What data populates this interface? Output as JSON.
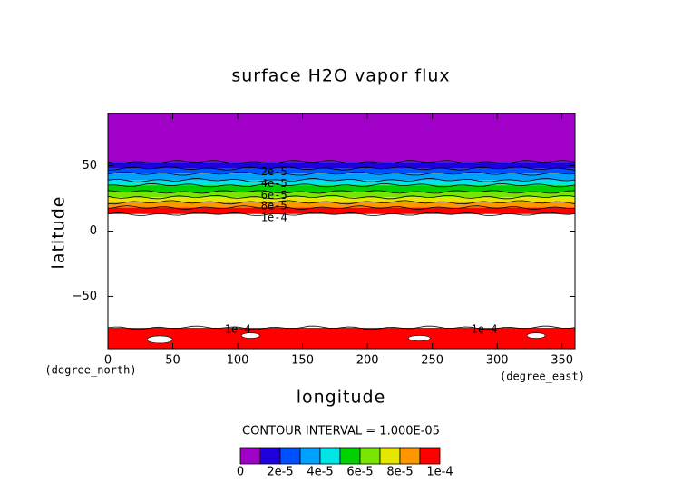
{
  "chart_data": {
    "type": "contour",
    "title": "surface H2O vapor flux",
    "x_label": "longitude",
    "y_label": "latitude",
    "x_unit": "(degree_east)",
    "y_unit": "(degree_north)",
    "xlim": [
      0,
      360
    ],
    "ylim": [
      -90,
      90
    ],
    "xticks": [
      0,
      50,
      100,
      150,
      200,
      250,
      300,
      350
    ],
    "yticks": [
      {
        "value": -50,
        "label": "−50"
      },
      0,
      50
    ],
    "levels": [
      0,
      1e-05,
      2e-05,
      3e-05,
      4e-05,
      5e-05,
      6e-05,
      7e-05,
      8e-05,
      9e-05,
      0.0001
    ],
    "colors": [
      "#a000c8",
      "#1e00dc",
      "#0050ff",
      "#00a0ff",
      "#00e6e6",
      "#00d200",
      "#78e600",
      "#e6e600",
      "#ff9600",
      "#ff0000",
      "#ffa0a0"
    ],
    "contours": [
      {
        "level": 1e-05,
        "lat": 53
      },
      {
        "level": 2e-05,
        "lat": 48,
        "label": "2e-5"
      },
      {
        "level": 3e-05,
        "lat": 44
      },
      {
        "level": 4e-05,
        "lat": 39,
        "label": "4e-5"
      },
      {
        "level": 5e-05,
        "lat": 35
      },
      {
        "level": 6e-05,
        "lat": 30,
        "label": "6e-5"
      },
      {
        "level": 7e-05,
        "lat": 26
      },
      {
        "level": 8e-05,
        "lat": 22,
        "label": "8e-5"
      },
      {
        "level": 9e-05,
        "lat": 18
      },
      {
        "level": 0.0001,
        "lat": 13,
        "label": "1e-4"
      }
    ],
    "south_contour": {
      "level": 0.0001,
      "lat": -74,
      "labels": [
        "1e-4",
        "1e-4"
      ]
    },
    "colorbar": {
      "title": "CONTOUR INTERVAL = 1.000E-05",
      "ticks": [
        0,
        {
          "value": 2e-05,
          "label": "2e-5"
        },
        {
          "value": 4e-05,
          "label": "4e-5"
        },
        {
          "value": 6e-05,
          "label": "6e-5"
        },
        {
          "value": 8e-05,
          "label": "8e-5"
        },
        {
          "value": 0.0001,
          "label": "1e-4"
        }
      ]
    }
  }
}
